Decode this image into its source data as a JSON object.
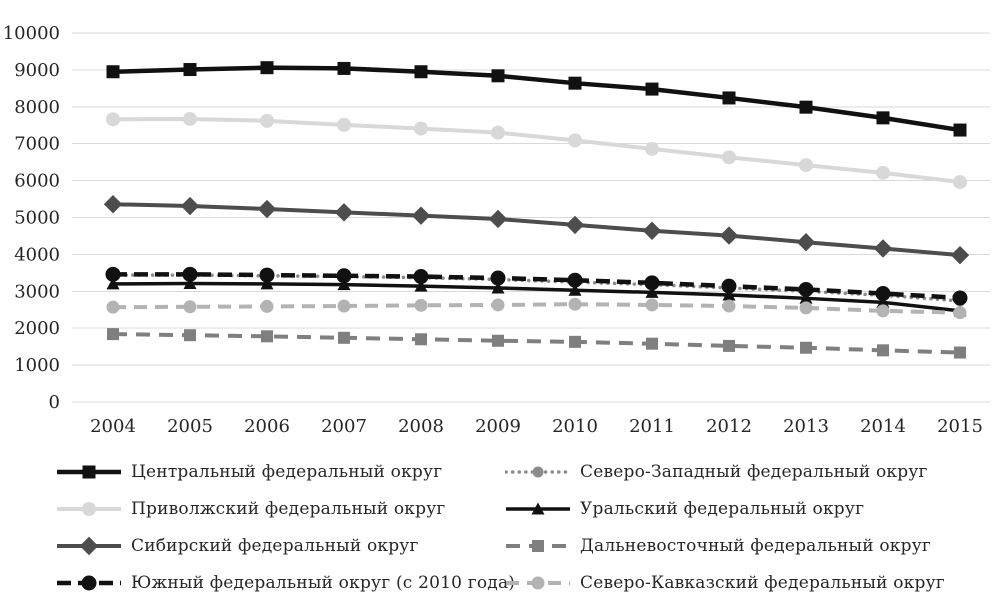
{
  "chart_data": {
    "type": "line",
    "title": "",
    "xlabel": "",
    "ylabel": "",
    "x": [
      2004,
      2005,
      2006,
      2007,
      2008,
      2009,
      2010,
      2011,
      2012,
      2013,
      2014,
      2015
    ],
    "yticks": [
      0,
      1000,
      2000,
      3000,
      4000,
      5000,
      6000,
      7000,
      8000,
      9000,
      10000
    ],
    "ylim": [
      0,
      10000
    ],
    "grid": "horizontal",
    "grid_color": "#d9d9d9",
    "text_color": "#262626",
    "background_color": "#ffffff",
    "legend_position": "bottom-two-columns",
    "series": [
      {
        "name": "Центральный федеральный округ",
        "color": "#111111",
        "line": "solid",
        "marker": "square",
        "values": [
          8950,
          9010,
          9060,
          9040,
          8950,
          8840,
          8640,
          8480,
          8240,
          7990,
          7700,
          7370
        ]
      },
      {
        "name": "Северо-Западный федеральный округ",
        "color": "#8c8c8c",
        "line": "dotted",
        "marker": "circle",
        "values": [
          3440,
          3440,
          3420,
          3400,
          3370,
          3320,
          3250,
          3180,
          3090,
          3000,
          2890,
          2740
        ]
      },
      {
        "name": "Приволжский федеральный округ",
        "color": "#d8d8d8",
        "line": "solid",
        "marker": "circle",
        "values": [
          7660,
          7670,
          7620,
          7510,
          7410,
          7300,
          7090,
          6860,
          6630,
          6420,
          6210,
          5960
        ]
      },
      {
        "name": "Уральский федеральный округ",
        "color": "#111111",
        "line": "solid",
        "marker": "triangle",
        "values": [
          3200,
          3210,
          3200,
          3180,
          3140,
          3090,
          3030,
          2970,
          2900,
          2810,
          2700,
          2470
        ]
      },
      {
        "name": "Сибирский федеральный округ",
        "color": "#4d4d4d",
        "line": "solid",
        "marker": "diamond",
        "values": [
          5360,
          5310,
          5230,
          5140,
          5050,
          4960,
          4800,
          4640,
          4510,
          4330,
          4160,
          3980
        ]
      },
      {
        "name": "Дальневосточный федеральный округ",
        "color": "#7f7f7f",
        "line": "dashed",
        "marker": "square",
        "values": [
          1840,
          1810,
          1780,
          1740,
          1700,
          1660,
          1630,
          1580,
          1520,
          1470,
          1400,
          1340
        ]
      },
      {
        "name": "Южный федеральный округ (с 2010 года)",
        "color": "#111111",
        "line": "dashed",
        "marker": "circle",
        "values": [
          3460,
          3460,
          3440,
          3420,
          3400,
          3360,
          3300,
          3230,
          3140,
          3050,
          2940,
          2820
        ]
      },
      {
        "name": "Северо-Кавказский федеральный округ",
        "color": "#b3b3b3",
        "line": "dashed",
        "marker": "circle",
        "values": [
          2570,
          2580,
          2590,
          2600,
          2620,
          2630,
          2650,
          2630,
          2600,
          2550,
          2470,
          2420
        ]
      }
    ]
  }
}
